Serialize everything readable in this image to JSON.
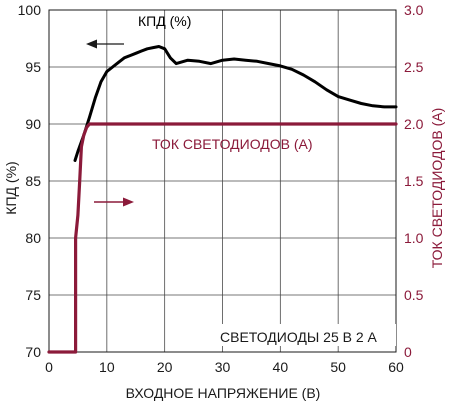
{
  "chart_data": {
    "type": "line",
    "xlabel": "ВХОДНОЕ НАПРЯЖЕНИЕ (В)",
    "ylabel_left": "КПД (%)",
    "ylabel_right": "ТОК СВЕТОДИОДОВ (А)",
    "xlim": [
      0,
      60
    ],
    "ylim_left": [
      70,
      100
    ],
    "ylim_right": [
      0,
      3.0
    ],
    "x_ticks": [
      "0",
      "10",
      "20",
      "30",
      "40",
      "50",
      "60"
    ],
    "y_ticks_left": [
      "70",
      "75",
      "80",
      "85",
      "90",
      "95",
      "100"
    ],
    "y_ticks_right": [
      "0",
      "0.5",
      "1.0",
      "1.5",
      "2.0",
      "2.5",
      "3.0"
    ],
    "grid": true,
    "series": [
      {
        "name": "КПД (%)",
        "axis": "left",
        "color": "#000000",
        "x": [
          4.5,
          5,
          6,
          7,
          8,
          9,
          10,
          11,
          12,
          13,
          14,
          15,
          16,
          17,
          18,
          19,
          20,
          21,
          22,
          24,
          26,
          28,
          30,
          32,
          34,
          36,
          38,
          40,
          42,
          44,
          46,
          48,
          50,
          52,
          54,
          56,
          58,
          60
        ],
        "values": [
          86.8,
          87.6,
          89.0,
          90.6,
          92.3,
          93.7,
          94.6,
          95.0,
          95.4,
          95.8,
          96.0,
          96.2,
          96.4,
          96.6,
          96.7,
          96.8,
          96.6,
          95.8,
          95.3,
          95.6,
          95.5,
          95.3,
          95.6,
          95.7,
          95.6,
          95.5,
          95.3,
          95.1,
          94.8,
          94.3,
          93.7,
          93.0,
          92.4,
          92.1,
          91.8,
          91.6,
          91.5,
          91.5
        ]
      },
      {
        "name": "ТОК СВЕТОДИОДОВ (А)",
        "axis": "right",
        "color": "#8b1a3a",
        "x": [
          0,
          4,
          4.6,
          4.6,
          5,
          5.3,
          5.6,
          6,
          6.5,
          7,
          7.5,
          8,
          10,
          20,
          30,
          40,
          50,
          60
        ],
        "values": [
          0,
          0,
          0,
          1.0,
          1.2,
          1.5,
          1.8,
          1.9,
          1.97,
          2.0,
          2.0,
          2.0,
          2.0,
          2.0,
          2.0,
          2.0,
          2.0,
          2.0
        ]
      }
    ],
    "annotations": {
      "efficiency_label": "КПД (%)",
      "current_label": "ТОК СВЕТОДИОДОВ (А)",
      "condition_label": "СВЕТОДИОДЫ 25 В 2 А"
    }
  }
}
